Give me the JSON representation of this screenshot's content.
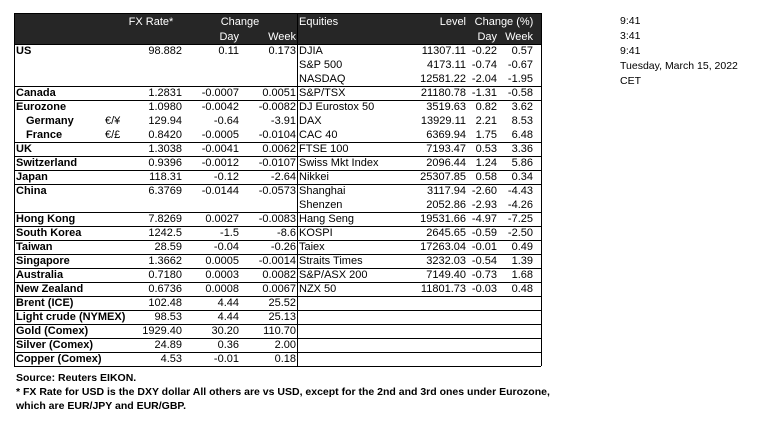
{
  "header": {
    "fx_rate": "FX Rate*",
    "change": "Change",
    "day": "Day",
    "week": "Week",
    "equities": "Equities",
    "level": "Level",
    "change_pct": "Change (%)",
    "day_pct": "Day",
    "week_pct": "Week"
  },
  "table": {
    "rows": [
      [
        "US",
        null,
        "98.882",
        "0.11",
        "0.173",
        "DJIA",
        "11307.11",
        "-0.22",
        "0.57"
      ],
      [
        null,
        null,
        null,
        null,
        null,
        "S&P 500",
        "4173.11",
        "-0.74",
        "-0.67"
      ],
      [
        null,
        null,
        null,
        null,
        null,
        "NASDAQ",
        "12581.22",
        "-2.04",
        "-1.95"
      ],
      [
        "Canada",
        null,
        "1.2831",
        "-0.0007",
        "0.0051",
        "S&P/TSX",
        "21180.78",
        "-1.31",
        "-0.58"
      ],
      [
        "Eurozone",
        null,
        "1.0980",
        "-0.0042",
        "-0.0082",
        "DJ Eurostox 50",
        "3519.63",
        "0.82",
        "3.62"
      ],
      [
        "Germany",
        "€/¥",
        "129.94",
        "-0.64",
        "-3.91",
        "DAX",
        "13929.11",
        "2.21",
        "8.53"
      ],
      [
        "France",
        "€/£",
        "0.8420",
        "-0.0005",
        "-0.0104",
        "CAC 40",
        "6369.94",
        "1.75",
        "6.48"
      ],
      [
        "UK",
        null,
        "1.3038",
        "-0.0041",
        "0.0062",
        "FTSE 100",
        "7193.47",
        "0.53",
        "3.36"
      ],
      [
        "Switzerland",
        null,
        "0.9396",
        "-0.0012",
        "-0.0107",
        "Swiss Mkt Index",
        "2096.44",
        "1.24",
        "5.86"
      ],
      [
        "Japan",
        null,
        "118.31",
        "-0.12",
        "-2.64",
        "Nikkei",
        "25307.85",
        "0.58",
        "0.34"
      ],
      [
        "China",
        null,
        "6.3769",
        "-0.0144",
        "-0.0573",
        "Shanghai",
        "3117.94",
        "-2.60",
        "-4.43"
      ],
      [
        null,
        null,
        null,
        null,
        null,
        "Shenzen",
        "2052.86",
        "-2.93",
        "-4.26"
      ],
      [
        "Hong Kong",
        null,
        "7.8269",
        "0.0027",
        "-0.0083",
        "Hang Seng",
        "19531.66",
        "-4.97",
        "-7.25"
      ],
      [
        "South Korea",
        null,
        "1242.5",
        "-1.5",
        "-8.6",
        "KOSPI",
        "2645.65",
        "-0.59",
        "-2.50"
      ],
      [
        "Taiwan",
        null,
        "28.59",
        "-0.04",
        "-0.26",
        "Taiex",
        "17263.04",
        "-0.01",
        "0.49"
      ],
      [
        "Singapore",
        null,
        "1.3662",
        "0.0005",
        "-0.0014",
        "Straits Times",
        "3232.03",
        "-0.54",
        "1.39"
      ],
      [
        "Australia",
        null,
        "0.7180",
        "0.0003",
        "0.0082",
        "S&P/ASX  200",
        "7149.40",
        "-0.73",
        "1.68"
      ],
      [
        "New Zealand",
        null,
        "0.6736",
        "0.0008",
        "0.0067",
        "NZX 50",
        "11801.73",
        "-0.03",
        "0.48"
      ],
      [
        "Brent (ICE)",
        null,
        "102.48",
        "4.44",
        "25.52",
        null,
        null,
        null,
        null
      ],
      [
        "Light crude (NYMEX)",
        null,
        "98.53",
        "4.44",
        "25.13",
        null,
        null,
        null,
        null
      ],
      [
        "Gold (Comex)",
        null,
        "1929.40",
        "30.20",
        "110.70",
        null,
        null,
        null,
        null
      ],
      [
        "Silver (Comex)",
        null,
        "24.89",
        "0.36",
        "2.00",
        null,
        null,
        null,
        null
      ],
      [
        "Copper (Comex)",
        null,
        "4.53",
        "-0.01",
        "0.18",
        null,
        null,
        null,
        null
      ]
    ]
  },
  "notes": [
    "Source:  Reuters EIKON.",
    "* FX Rate for USD is the DXY dollar  All others are vs USD, except for the 2nd and 3rd ones under Eurozone,",
    "  which are EUR/JPY and EUR/GBP."
  ],
  "side": [
    "9:41",
    "3:41",
    "9:41",
    "Tuesday, March 15, 2022",
    "CET"
  ]
}
